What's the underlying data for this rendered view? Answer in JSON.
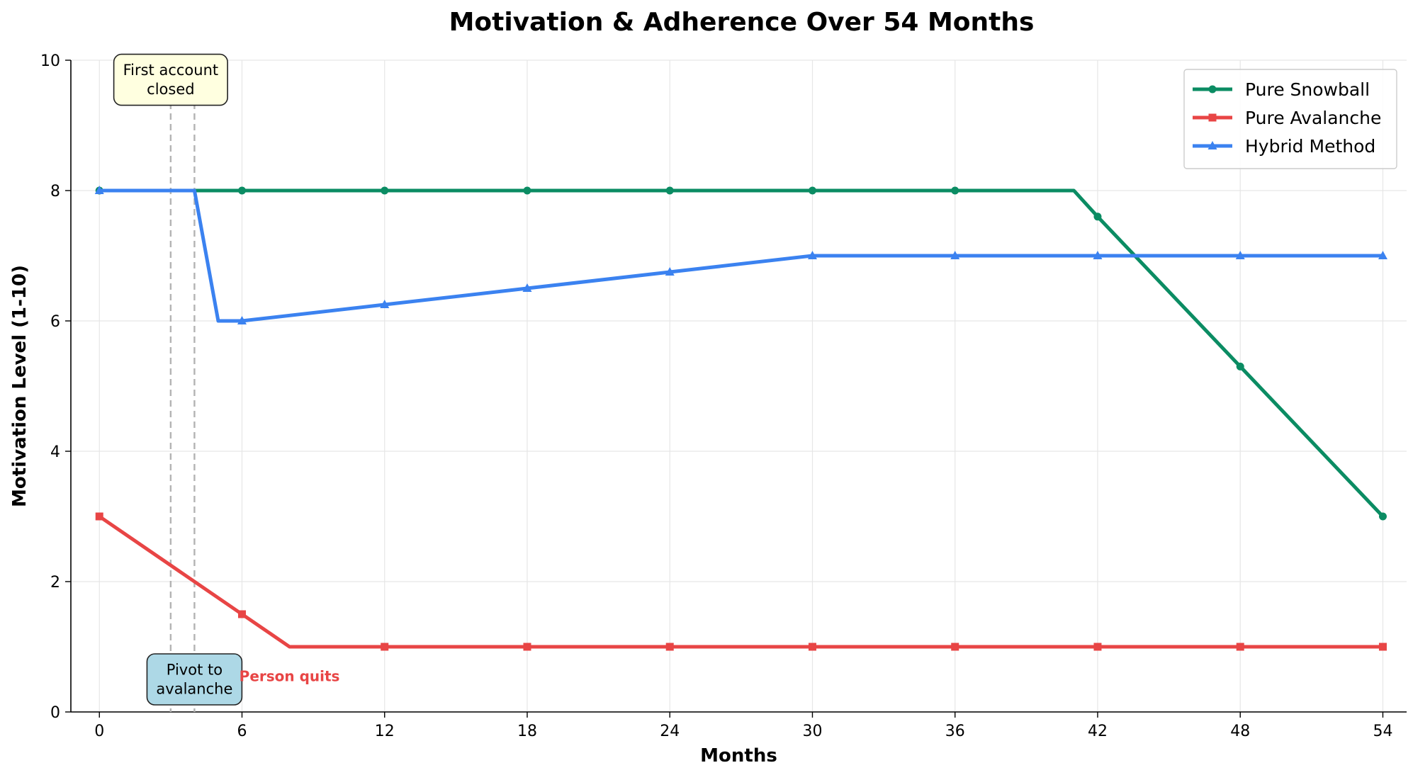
{
  "chart_data": {
    "type": "line",
    "title": "Motivation & Adherence Over 54 Months",
    "xlabel": "Months",
    "ylabel": "Motivation Level (1-10)",
    "xlim": [
      -1.2,
      55
    ],
    "ylim": [
      0,
      10
    ],
    "xticks": [
      0,
      6,
      12,
      18,
      24,
      30,
      36,
      42,
      48,
      54
    ],
    "yticks": [
      0,
      2,
      4,
      6,
      8,
      10
    ],
    "grid": true,
    "legend_position": "top-right",
    "series": [
      {
        "name": "Pure Snowball",
        "color": "#0b8c63",
        "marker": "circle",
        "line": [
          [
            0,
            8
          ],
          [
            6,
            8
          ],
          [
            12,
            8
          ],
          [
            18,
            8
          ],
          [
            24,
            8
          ],
          [
            30,
            8
          ],
          [
            36,
            8
          ],
          [
            41,
            8
          ],
          [
            42,
            7.6
          ],
          [
            48,
            5.3
          ],
          [
            54,
            3
          ]
        ],
        "markers": [
          [
            0,
            8
          ],
          [
            6,
            8
          ],
          [
            12,
            8
          ],
          [
            18,
            8
          ],
          [
            24,
            8
          ],
          [
            30,
            8
          ],
          [
            36,
            8
          ],
          [
            42,
            7.6
          ],
          [
            48,
            5.3
          ],
          [
            54,
            3
          ]
        ]
      },
      {
        "name": "Pure Avalanche",
        "color": "#e84545",
        "marker": "square",
        "line": [
          [
            0,
            3
          ],
          [
            6,
            1.5
          ],
          [
            8,
            1
          ],
          [
            12,
            1
          ],
          [
            18,
            1
          ],
          [
            24,
            1
          ],
          [
            30,
            1
          ],
          [
            36,
            1
          ],
          [
            42,
            1
          ],
          [
            48,
            1
          ],
          [
            54,
            1
          ]
        ],
        "markers": [
          [
            0,
            3
          ],
          [
            6,
            1.5
          ],
          [
            12,
            1
          ],
          [
            18,
            1
          ],
          [
            24,
            1
          ],
          [
            30,
            1
          ],
          [
            36,
            1
          ],
          [
            42,
            1
          ],
          [
            48,
            1
          ],
          [
            54,
            1
          ]
        ]
      },
      {
        "name": "Hybrid Method",
        "color": "#3b82f0",
        "marker": "triangle",
        "line": [
          [
            0,
            8
          ],
          [
            4,
            8
          ],
          [
            5,
            6
          ],
          [
            6,
            6
          ],
          [
            12,
            6.25
          ],
          [
            18,
            6.5
          ],
          [
            24,
            6.75
          ],
          [
            30,
            7
          ],
          [
            36,
            7
          ],
          [
            42,
            7
          ],
          [
            48,
            7
          ],
          [
            54,
            7
          ]
        ],
        "markers": [
          [
            0,
            8
          ],
          [
            6,
            6
          ],
          [
            12,
            6.25
          ],
          [
            18,
            6.5
          ],
          [
            24,
            6.75
          ],
          [
            30,
            7
          ],
          [
            36,
            7
          ],
          [
            42,
            7
          ],
          [
            48,
            7
          ],
          [
            54,
            7
          ]
        ]
      }
    ],
    "vertical_lines": [
      3,
      4
    ],
    "annotations": [
      {
        "lines": [
          "First account",
          "closed"
        ],
        "x": 3,
        "y": 9.7,
        "fill": "#ffffe0"
      },
      {
        "lines": [
          "Pivot to",
          "avalanche"
        ],
        "x": 4,
        "y": 0.5,
        "fill": "#add8e6"
      },
      {
        "text": "Person quits",
        "x": 8,
        "y": 0.55,
        "color": "#e84545"
      }
    ]
  }
}
